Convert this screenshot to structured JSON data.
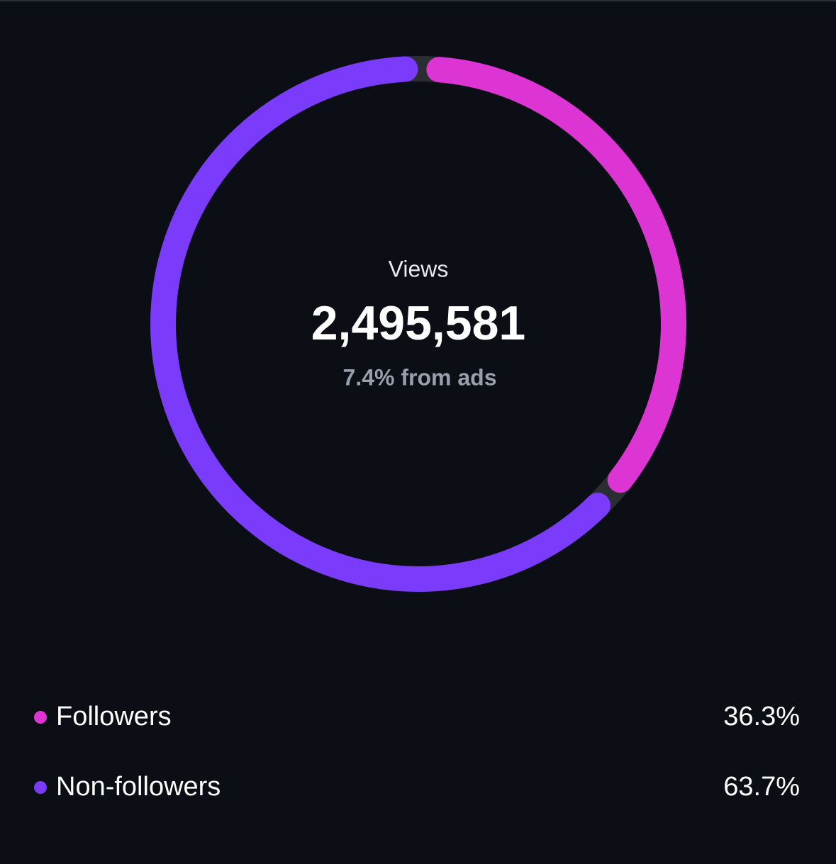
{
  "chart_data": {
    "type": "donut",
    "center_label": "Views",
    "center_value": "2,495,581",
    "center_note": "7.4% from ads",
    "categories": [
      "Followers",
      "Non-followers"
    ],
    "values": [
      36.3,
      63.7
    ],
    "value_labels": [
      "36.3%",
      "63.7%"
    ],
    "colors": [
      "#dd35d4",
      "#7b3bfa"
    ]
  }
}
